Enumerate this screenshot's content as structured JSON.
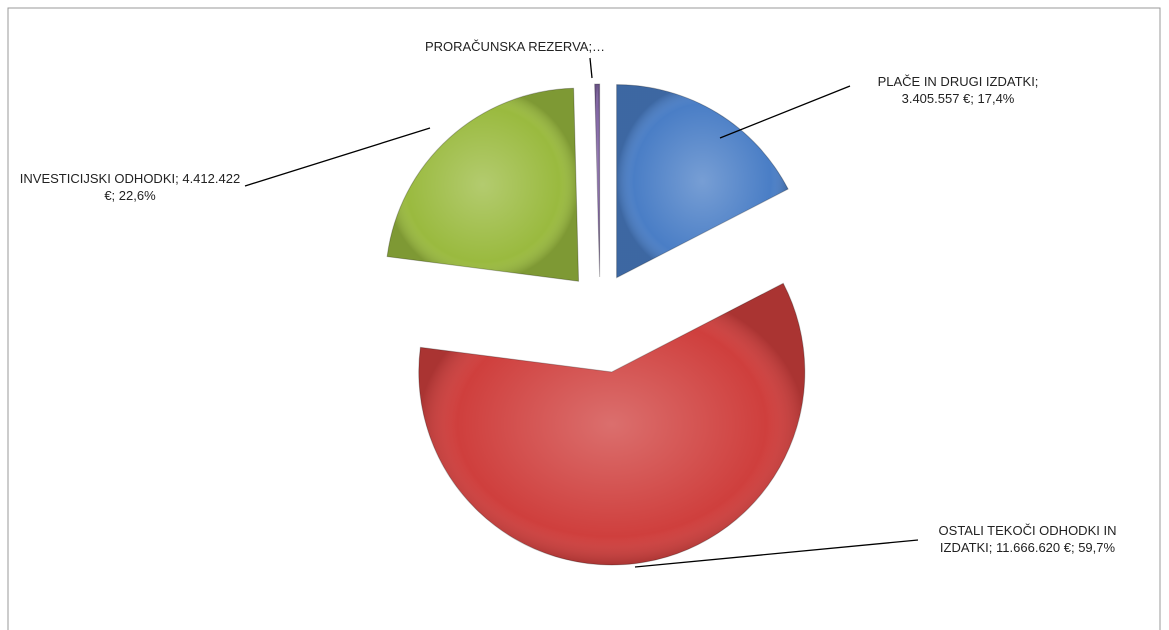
{
  "chart_data": {
    "type": "pie",
    "categories": [
      "PLAČE IN DRUGI IZDATKI;",
      "OSTALI TEKOČI ODHODKI IN IZDATKI;",
      "INVESTICIJSKI ODHODKI;",
      "PRORAČUNSKA REZERVA;…"
    ],
    "values": [
      3405557,
      11666620,
      4412422,
      80000
    ],
    "value_labels": [
      "3.405.557 €; 17,4%",
      "11.666.620 €; 59,7%",
      "4.412.422 €; 22,6%",
      null
    ],
    "colors": [
      "#4a7ec6",
      "#cf3f3d",
      "#9aba3f",
      "#8064a2"
    ]
  }
}
